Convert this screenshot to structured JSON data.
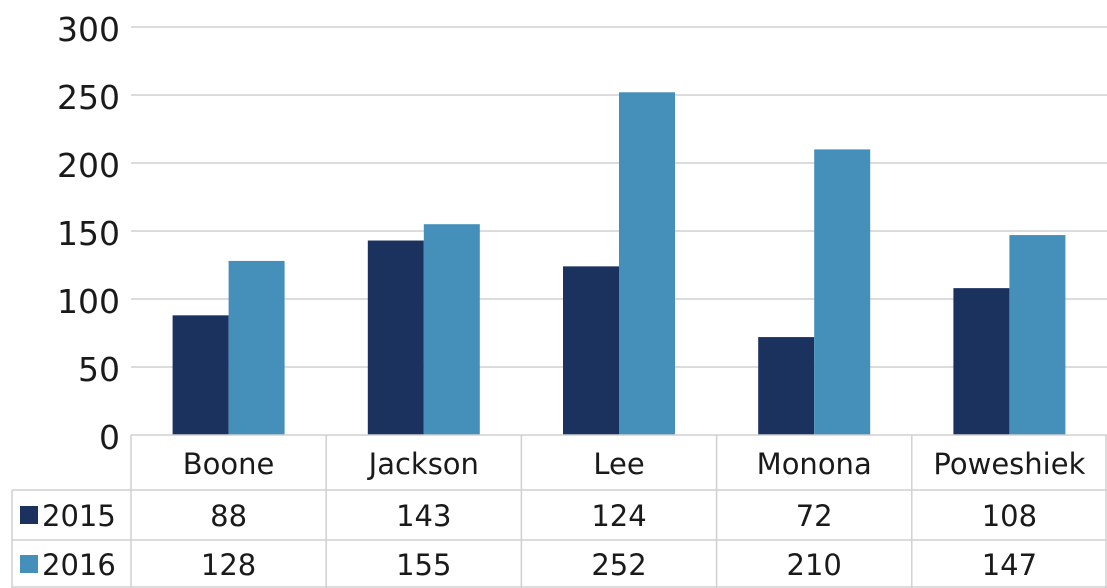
{
  "chart_data": {
    "type": "bar",
    "categories": [
      "Boone",
      "Jackson",
      "Lee",
      "Monona",
      "Poweshiek"
    ],
    "series": [
      {
        "name": "2015",
        "values": [
          88,
          143,
          124,
          72,
          108
        ],
        "color": "#1b325f"
      },
      {
        "name": "2016",
        "values": [
          128,
          155,
          252,
          210,
          147
        ],
        "color": "#4490bb"
      }
    ],
    "ylim": [
      0,
      300
    ],
    "yticks": [
      0,
      50,
      100,
      150,
      200,
      250,
      300
    ],
    "grid": true,
    "data_table": true,
    "legend": "data-table"
  }
}
